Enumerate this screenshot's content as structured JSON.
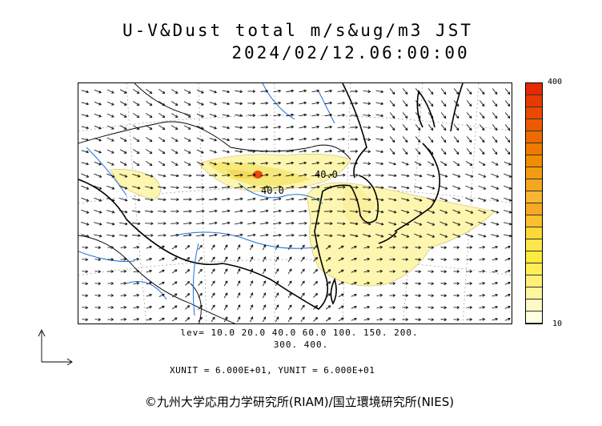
{
  "title": {
    "line1": "U-V&Dust total m/s&ug/m3 JST",
    "line2": "2024/02/12.06:00:00"
  },
  "colorbar": {
    "max_label": "400",
    "min_label": "10",
    "colors": [
      "#ffffe0",
      "#fff9c4",
      "#fff59d",
      "#fff176",
      "#ffee58",
      "#ffeb3b",
      "#fde74c",
      "#fdd835",
      "#fbc02d",
      "#f9a825",
      "#f7b733",
      "#f5a623",
      "#f39c12",
      "#f08c00",
      "#ef7a00",
      "#ee6a00",
      "#ec5a00",
      "#ea4a00",
      "#e83a00",
      "#e62a00"
    ]
  },
  "contour_labels": {
    "upper": "40.0",
    "lower": "40.0"
  },
  "levels": {
    "line1": "lev=  10.0  20.0  40.0  60.0 100. 150. 200.",
    "line2": "300. 400."
  },
  "units": {
    "text": "XUNIT = 6.000E+01, YUNIT = 6.000E+01"
  },
  "copyright": {
    "text": "©九州大学応用力学研究所(RIAM)/国立環境研究所(NIES)"
  },
  "map_colors": {
    "coast": "#000000",
    "river": "#1f6fd6",
    "dust_light": "#fdf6b0",
    "dust_mid": "#f6e879",
    "dust_high": "#ee9a1a",
    "dust_peak": "#e8450f"
  }
}
